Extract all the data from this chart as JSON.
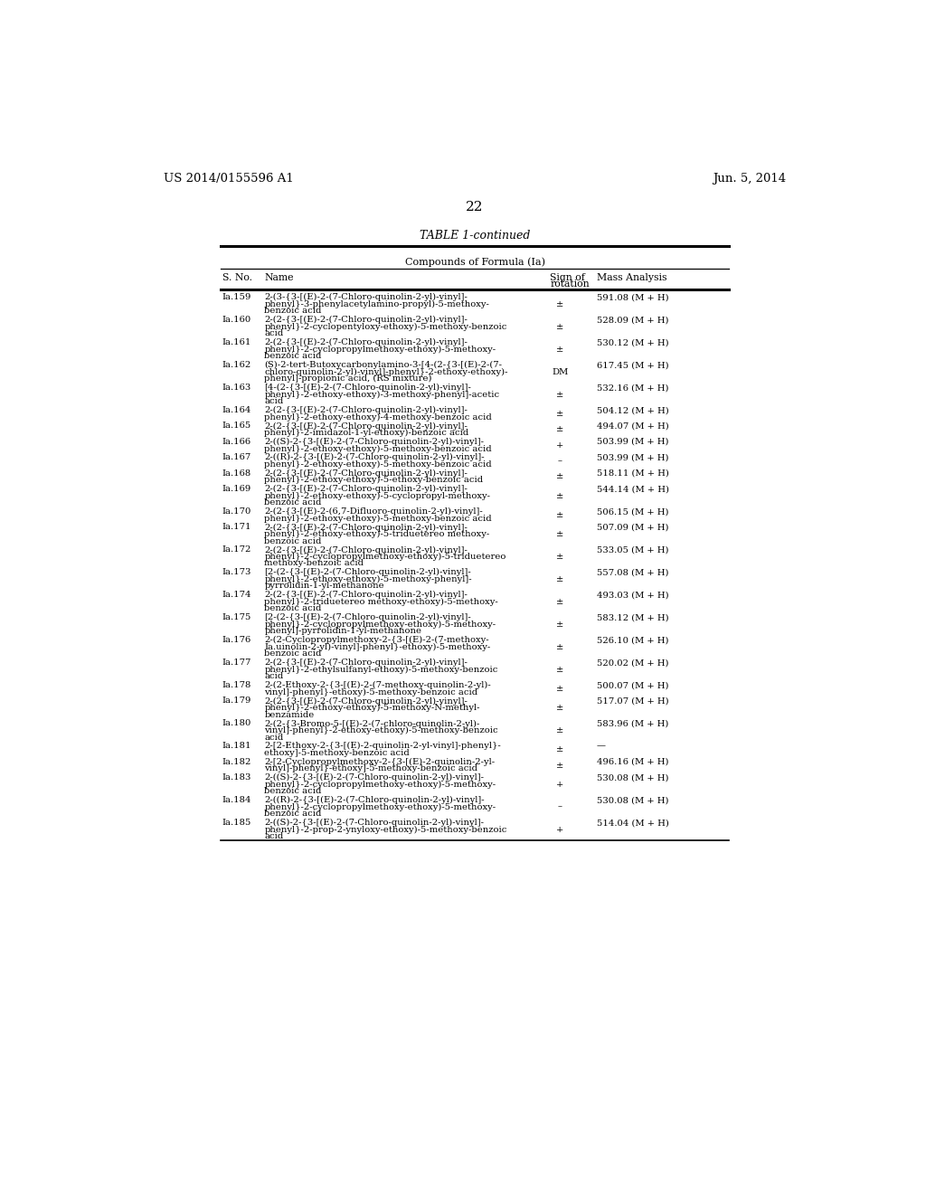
{
  "page_header_left": "US 2014/0155596 A1",
  "page_header_right": "Jun. 5, 2014",
  "page_number": "22",
  "table_title": "TABLE 1-continued",
  "table_subtitle": "Compounds of Formula (Ia)",
  "rows": [
    [
      "Ia.159",
      "2-(3-{3-[(E)-2-(7-Chloro-quinolin-2-yl)-vinyl]-\nphenyl}-3-phenylacetylamino-propyl)-5-methoxy-\nbenzoic acid",
      "±",
      "591.08 (M + H)"
    ],
    [
      "Ia.160",
      "2-(2-{3-[(E)-2-(7-Chloro-quinolin-2-yl)-vinyl]-\nphenyl}-2-cyclopentyloxy-ethoxy)-5-methoxy-benzoic\nacid",
      "±",
      "528.09 (M + H)"
    ],
    [
      "Ia.161",
      "2-(2-{3-[(E)-2-(7-Chloro-quinolin-2-yl)-vinyl]-\nphenyl}-2-cyclopropylmethoxy-ethoxy)-5-methoxy-\nbenzoic acid",
      "±",
      "530.12 (M + H)"
    ],
    [
      "Ia.162",
      "(S)-2-tert-Butoxycarbonylamino-3-[4-(2-{3-[(E)-2-(7-\nchloro-quinolin-2-yl)-vinyl]-phenyl}-2-ethoxy-ethoxy)-\nphenyl]-propionic acid, (RS mixture)",
      "DM",
      "617.45 (M + H)"
    ],
    [
      "Ia.163",
      "[4-(2-{3-[(E)-2-(7-Chloro-quinolin-2-yl)-vinyl]-\nphenyl}-2-ethoxy-ethoxy)-3-methoxy-phenyl]-acetic\nacid",
      "±",
      "532.16 (M + H)"
    ],
    [
      "Ia.164",
      "2-(2-{3-[(E)-2-(7-Chloro-quinolin-2-yl)-vinyl]-\nphenyl}-2-ethoxy-ethoxy)-4-methoxy-benzoic acid",
      "±",
      "504.12 (M + H)"
    ],
    [
      "Ia.165",
      "2-(2-{3-[(E)-2-(7-Chloro-quinolin-2-yl)-vinyl]-\nphenyl}-2-imidazol-1-yl-ethoxy)-benzoic acid",
      "±",
      "494.07 (M + H)"
    ],
    [
      "Ia.166",
      "2-((S)-2-{3-[(E)-2-(7-Chloro-quinolin-2-yl)-vinyl]-\nphenyl}-2-ethoxy-ethoxy)-5-methoxy-benzoic acid",
      "+",
      "503.99 (M + H)"
    ],
    [
      "Ia.167",
      "2-((R)-2-{3-[(E)-2-(7-Chloro-quinolin-2-yl)-vinyl]-\nphenyl}-2-ethoxy-ethoxy)-5-methoxy-benzoic acid",
      "–",
      "503.99 (M + H)"
    ],
    [
      "Ia.168",
      "2-(2-{3-[(E)-2-(7-Chloro-quinolin-2-yl)-vinyl]-\nphenyl}-2-ethoxy-ethoxy)-5-ethoxy-benzoic acid",
      "±",
      "518.11 (M + H)"
    ],
    [
      "Ia.169",
      "2-(2-{3-[(E)-2-(7-Chloro-quinolin-2-yl)-vinyl]-\nphenyl}-2-ethoxy-ethoxy)-5-cyclopropyl-methoxy-\nbenzoic acid",
      "±",
      "544.14 (M + H)"
    ],
    [
      "Ia.170",
      "2-(2-{3-[(E)-2-(6,7-Difluoro-quinolin-2-yl)-vinyl]-\nphenyl}-2-ethoxy-ethoxy)-5-methoxy-benzoic acid",
      "±",
      "506.15 (M + H)"
    ],
    [
      "Ia.171",
      "2-(2-{3-[(E)-2-(7-Chloro-quinolin-2-yl)-vinyl]-\nphenyl}-2-ethoxy-ethoxy)-5-triduetereo methoxy-\nbenzoic acid",
      "±",
      "507.09 (M + H)"
    ],
    [
      "Ia.172",
      "2-(2-{3-[(E)-2-(7-Chloro-quinolin-2-yl)-vinyl]-\nphenyl}-2-cyclopropylmethoxy-ethoxy)-5-triduetereo\nmethoxy-benzoic acid",
      "±",
      "533.05 (M + H)"
    ],
    [
      "Ia.173",
      "[2-(2-{3-[(E)-2-(7-Chloro-quinolin-2-yl)-vinyl]-\nphenyl}-2-ethoxy-ethoxy)-5-methoxy-phenyl]-\npyrrolidin-1-yl-methanone",
      "±",
      "557.08 (M + H)"
    ],
    [
      "Ia.174",
      "2-(2-{3-[(E)-2-(7-Chloro-quinolin-2-yl)-vinyl]-\nphenyl}-2-triduetereo methoxy-ethoxy)-5-methoxy-\nbenzoic acid",
      "±",
      "493.03 (M + H)"
    ],
    [
      "Ia.175",
      "[2-(2-{3-[(E)-2-(7-Chloro-quinolin-2-yl)-vinyl]-\nphenyl}-2-cyclopropylmethoxy-ethoxy)-5-methoxy-\nphenyl]-pyrrolidin-1-yl-methanone",
      "±",
      "583.12 (M + H)"
    ],
    [
      "Ia.176",
      "2-(2-Cyclopropylmethoxy-2-{3-[(E)-2-(7-methoxy-\nIa.uinolin-2-yl)-vinyl]-phenyl}-ethoxy)-5-methoxy-\nbenzoic acid",
      "±",
      "526.10 (M + H)"
    ],
    [
      "Ia.177",
      "2-(2-{3-[(E)-2-(7-Chloro-quinolin-2-yl)-vinyl]-\nphenyl}-2-ethylsulfanyl-ethoxy)-5-methoxy-benzoic\nacid",
      "±",
      "520.02 (M + H)"
    ],
    [
      "Ia.178",
      "2-(2-Ethoxy-2-{3-[(E)-2-(7-methoxy-quinolin-2-yl)-\nvinyl]-phenyl}-ethoxy)-5-methoxy-benzoic acid",
      "±",
      "500.07 (M + H)"
    ],
    [
      "Ia.179",
      "2-(2-{3-[(E)-2-(7-Chloro-quinolin-2-yl)-vinyl]-\nphenyl}-2-ethoxy-ethoxy)-5-methoxy-N-methyl-\nbenzamide",
      "±",
      "517.07 (M + H)"
    ],
    [
      "Ia.180",
      "2-(2-{3-Bromo-5-[(E)-2-(7-chloro-quinolin-2-yl)-\nvinyl]-phenyl}-2-ethoxy-ethoxy)-5-methoxy-benzoic\nacid",
      "±",
      "583.96 (M + H)"
    ],
    [
      "Ia.181",
      "2-[2-Ethoxy-2-{3-[(E)-2-quinolin-2-yl-vinyl]-phenyl}-\nethoxy]-5-methoxy-benzoic acid",
      "±",
      "—"
    ],
    [
      "Ia.182",
      "2-[2-Cyclopropylmethoxy-2-{3-[(E)-2-quinolin-2-yl-\nvinyl]-phenyl}-ethoxy]-5-methoxy-benzoic acid",
      "±",
      "496.16 (M + H)"
    ],
    [
      "Ia.183",
      "2-((S)-2-{3-[(E)-2-(7-Chloro-quinolin-2-yl)-vinyl]-\nphenyl}-2-cyclopropylmethoxy-ethoxy)-5-methoxy-\nbenzoic acid",
      "+",
      "530.08 (M + H)"
    ],
    [
      "Ia.184",
      "2-((R)-2-{3-[(E)-2-(7-Chloro-quinolin-2-yl)-vinyl]-\nphenyl}-2-cyclopropylmethoxy-ethoxy)-5-methoxy-\nbenzoic acid",
      "–",
      "530.08 (M + H)"
    ],
    [
      "Ia.185",
      "2-((S)-2-{3-[(E)-2-(7-Chloro-quinolin-2-yl)-vinyl]-\nphenyl}-2-prop-2-ynyloxy-ethoxy)-5-methoxy-benzoic\nacid",
      "+",
      "514.04 (M + H)"
    ]
  ],
  "bg_color": "#ffffff",
  "text_color": "#000000"
}
